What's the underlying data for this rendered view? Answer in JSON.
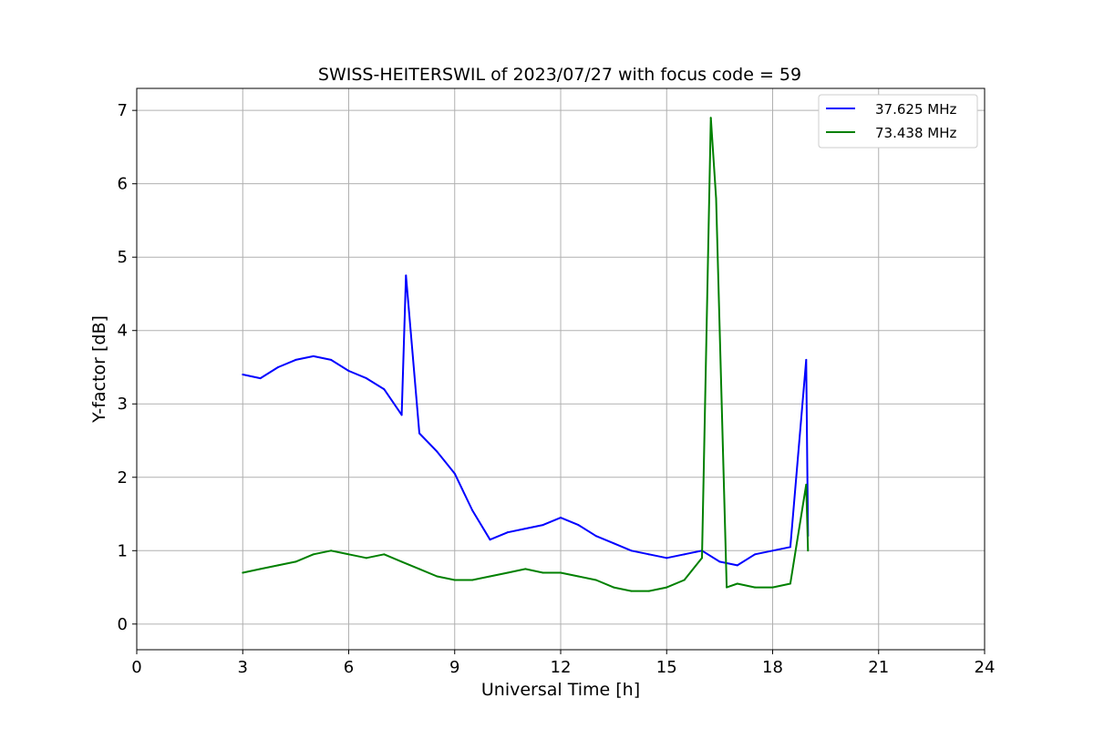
{
  "chart_data": {
    "type": "line",
    "title": "SWISS-HEITERSWIL of 2023/07/27 with focus code = 59",
    "xlabel": "Universal Time [h]",
    "ylabel": "Y-factor [dB]",
    "xlim": [
      0,
      24
    ],
    "ylim": [
      -0.35,
      7.3
    ],
    "xticks": [
      0,
      3,
      6,
      9,
      12,
      15,
      18,
      21,
      24
    ],
    "yticks": [
      0,
      1,
      2,
      3,
      4,
      5,
      6,
      7
    ],
    "grid": true,
    "legend_position": "top-right",
    "series": [
      {
        "name": "37.625 MHz",
        "color": "#0000ff",
        "x": [
          3.0,
          3.5,
          4.0,
          4.5,
          5.0,
          5.5,
          6.0,
          6.5,
          7.0,
          7.5,
          7.62,
          8.0,
          8.5,
          9.0,
          9.5,
          10.0,
          10.5,
          11.0,
          11.5,
          12.0,
          12.5,
          13.0,
          13.5,
          14.0,
          14.5,
          15.0,
          15.5,
          16.0,
          16.5,
          17.0,
          17.5,
          18.0,
          18.5,
          18.95,
          19.0
        ],
        "y": [
          3.4,
          3.35,
          3.5,
          3.6,
          3.65,
          3.6,
          3.45,
          3.35,
          3.2,
          2.85,
          4.75,
          2.6,
          2.35,
          2.05,
          1.55,
          1.15,
          1.25,
          1.3,
          1.35,
          1.45,
          1.35,
          1.2,
          1.1,
          1.0,
          0.95,
          0.9,
          0.95,
          1.0,
          0.85,
          0.8,
          0.95,
          1.0,
          1.05,
          3.6,
          1.2
        ]
      },
      {
        "name": "73.438 MHz",
        "color": "#008000",
        "x": [
          3.0,
          3.5,
          4.0,
          4.5,
          5.0,
          5.5,
          6.0,
          6.5,
          7.0,
          7.5,
          8.0,
          8.5,
          9.0,
          9.5,
          10.0,
          10.5,
          11.0,
          11.5,
          12.0,
          12.5,
          13.0,
          13.5,
          14.0,
          14.5,
          15.0,
          15.5,
          16.0,
          16.25,
          16.4,
          16.7,
          17.0,
          17.5,
          18.0,
          18.5,
          18.95,
          19.0
        ],
        "y": [
          0.7,
          0.75,
          0.8,
          0.85,
          0.95,
          1.0,
          0.95,
          0.9,
          0.95,
          0.85,
          0.75,
          0.65,
          0.6,
          0.6,
          0.65,
          0.7,
          0.75,
          0.7,
          0.7,
          0.65,
          0.6,
          0.5,
          0.45,
          0.45,
          0.5,
          0.6,
          0.9,
          6.9,
          5.8,
          0.5,
          0.55,
          0.5,
          0.5,
          0.55,
          1.9,
          1.0
        ]
      }
    ]
  }
}
